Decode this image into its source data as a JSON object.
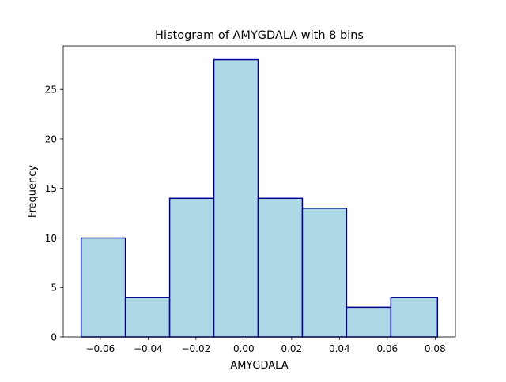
{
  "chart_data": {
    "type": "bar",
    "title": "Histogram of AMYGDALA with 8 bins",
    "xlabel": "AMYGDALA",
    "ylabel": "Frequency",
    "bin_edges": [
      -0.068,
      -0.0495,
      -0.031,
      -0.0125,
      0.006,
      0.0245,
      0.043,
      0.0615,
      0.081
    ],
    "values": [
      10,
      4,
      14,
      28,
      14,
      13,
      3,
      4
    ],
    "xlim": [
      -0.0755,
      0.0885
    ],
    "ylim": [
      0,
      29.4
    ],
    "xticks": [
      -0.06,
      -0.04,
      -0.02,
      0.0,
      0.02,
      0.04,
      0.06,
      0.08
    ],
    "xtick_labels": [
      "−0.06",
      "−0.04",
      "−0.02",
      "0.00",
      "0.02",
      "0.04",
      "0.06",
      "0.08"
    ],
    "yticks": [
      0,
      5,
      10,
      15,
      20,
      25
    ],
    "ytick_labels": [
      "0",
      "5",
      "10",
      "15",
      "20",
      "25"
    ],
    "grid": false,
    "bar_fill": "#add8e6",
    "bar_edge": "#00008b"
  }
}
